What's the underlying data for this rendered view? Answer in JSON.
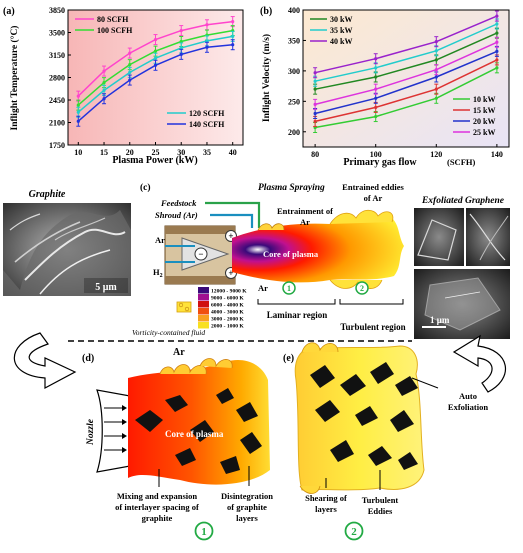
{
  "colors": {
    "s80": "#ff44cc",
    "s100": "#33dd33",
    "s120": "#22cccc",
    "s140": "#2233dd",
    "kw30": "#228822",
    "kw35": "#22cccc",
    "kw40": "#9922cc",
    "kw10": "#33cc33",
    "kw15": "#dd3333",
    "kw20": "#2233cc",
    "kw25": "#dd33dd",
    "plasma_core": "#ff2200",
    "plasma_mid": "#ff9900",
    "plasma_edge": "#ffee33"
  },
  "chart_data": [
    {
      "type": "line",
      "panel": "(a)",
      "xlabel": "Plasma Power (kW)",
      "ylabel": "Inflight Temperature (°C)",
      "x": [
        10,
        15,
        20,
        25,
        30,
        35,
        40
      ],
      "xlim": [
        8,
        42
      ],
      "ylim": [
        1750,
        3850
      ],
      "xticks": [
        "10",
        "15",
        "20",
        "25",
        "30",
        "35",
        "40"
      ],
      "yticks": [
        "1750",
        "2100",
        "2450",
        "2800",
        "3150",
        "3500",
        "3850"
      ],
      "series": [
        {
          "name": "80 SCFH",
          "color_key": "s80",
          "values": [
            2510,
            2900,
            3180,
            3390,
            3530,
            3620,
            3670
          ]
        },
        {
          "name": "100 SCFH",
          "color_key": "s100",
          "values": [
            2370,
            2720,
            3000,
            3210,
            3360,
            3460,
            3530
          ]
        },
        {
          "name": "120 SCFH",
          "color_key": "s120",
          "values": [
            2260,
            2600,
            2880,
            3100,
            3260,
            3370,
            3440
          ]
        },
        {
          "name": "140 SCFH",
          "color_key": "s140",
          "values": [
            2120,
            2470,
            2760,
            2990,
            3160,
            3270,
            3310
          ]
        }
      ],
      "grid": false,
      "legend": "top-left and bottom-right"
    },
    {
      "type": "line",
      "panel": "(b)",
      "xlabel": "Primary gas flow",
      "xunit": "(SCFH)",
      "ylabel": "Inflight Velocity (m/s)",
      "x": [
        80,
        100,
        120,
        140
      ],
      "xlim": [
        76,
        144
      ],
      "ylim": [
        175,
        400
      ],
      "xticks": [
        "80",
        "100",
        "120",
        "140"
      ],
      "yticks": [
        "200",
        "250",
        "300",
        "350",
        "400"
      ],
      "series": [
        {
          "name": "30 kW",
          "color_key": "kw30",
          "values": [
            270,
            290,
            318,
            362
          ]
        },
        {
          "name": "35 kW",
          "color_key": "kw35",
          "values": [
            283,
            305,
            333,
            377
          ]
        },
        {
          "name": "40 kW",
          "color_key": "kw40",
          "values": [
            297,
            320,
            348,
            390
          ]
        },
        {
          "name": "10 kW",
          "color_key": "kw10",
          "values": [
            207,
            225,
            255,
            305
          ]
        },
        {
          "name": "15 kW",
          "color_key": "kw15",
          "values": [
            217,
            240,
            270,
            318
          ]
        },
        {
          "name": "20 kW",
          "color_key": "kw20",
          "values": [
            230,
            255,
            290,
            332
          ]
        },
        {
          "name": "25 kW",
          "color_key": "kw25",
          "values": [
            245,
            270,
            302,
            347
          ]
        }
      ],
      "grid": false,
      "legend": "top-left and bottom-right"
    }
  ],
  "panel_c": {
    "label": "(c)",
    "title": "Plasma Spraying",
    "feedstock": "Feedstock",
    "shroud": "Shroud (Ar)",
    "ar": "Ar",
    "h2": "H",
    "h2_sub": "2",
    "entrainment": "Entrainment of",
    "entrainment2": "Ar",
    "eddies": "Entrained eddies",
    "eddies2": "of Ar",
    "core": "Core of plasma",
    "ar_bottom": "Ar",
    "laminar": "Laminar region",
    "turbulent": "Turbulent region",
    "one": "1",
    "two": "2",
    "plus": "+",
    "minus": "−",
    "temp_legend": [
      "12000 - 9000 K",
      "9000 - 6000 K",
      "6000 - 4000 K",
      "4000 - 3000 K",
      "3000 - 2000 K",
      "2000 - 1000 K"
    ],
    "temp_colors": [
      "#3a0a7a",
      "#a01090",
      "#d01010",
      "#f05010",
      "#f8a020",
      "#f8e020"
    ]
  },
  "graphite": {
    "title": "Graphite",
    "scale": "5 μm"
  },
  "graphene": {
    "title": "Exfoliated Graphene",
    "scale": "1 μm"
  },
  "vorticity": "Vorticity-contained fluid",
  "panel_d": {
    "label": "(d)",
    "ar": "Ar",
    "nozzle": "Nozzle",
    "core": "Core of plasma",
    "mixing1": "Mixing and expansion",
    "mixing2": "of interlayer spacing of",
    "mixing3": "graphite",
    "disint1": "Disintegration",
    "disint2": "of graphite",
    "disint3": "layers",
    "num": "1"
  },
  "panel_e": {
    "label": "(e)",
    "auto1": "Auto",
    "auto2": "Exfoliation",
    "shear1": "Shearing of",
    "shear2": "layers",
    "turb1": "Turbulent",
    "turb2": "Eddies",
    "num": "2"
  }
}
